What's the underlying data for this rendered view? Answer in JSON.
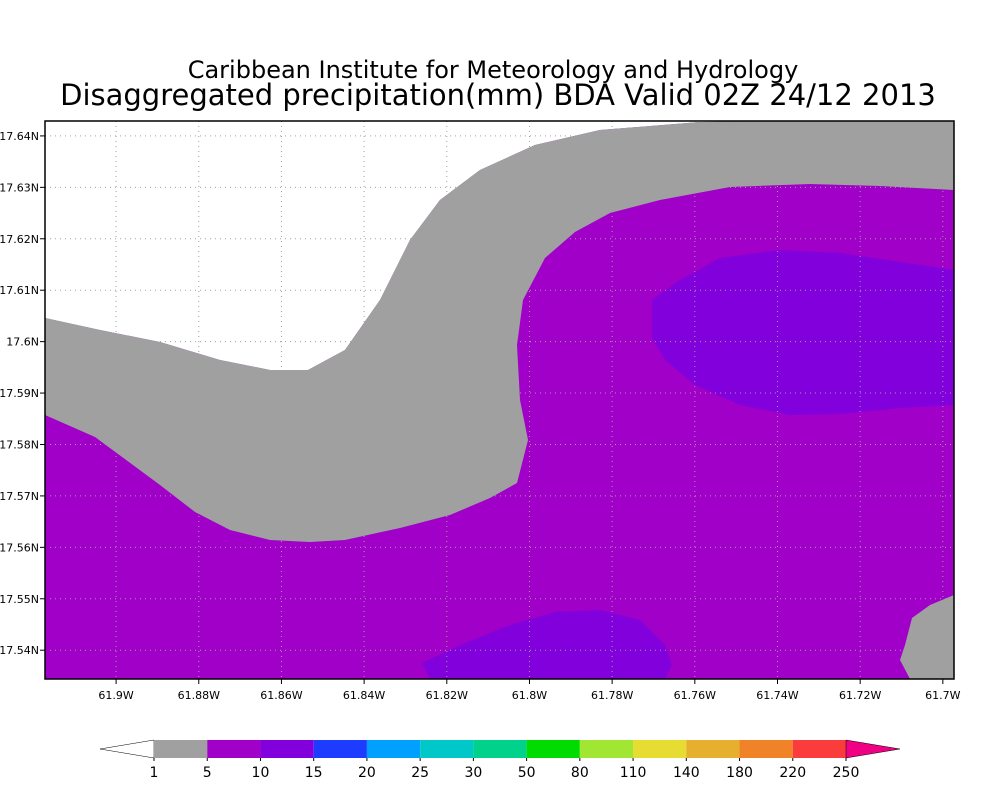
{
  "chart_data": {
    "type": "contour",
    "title": "Caribbean Institute for Meteorology and Hydrology",
    "subtitle": "Disaggregated precipitation(mm) BDA Valid 02Z 24/12 2013",
    "xlim": [
      -61.9172,
      -61.6973
    ],
    "ylim": [
      17.5344,
      17.6429
    ],
    "xticks": [
      {
        "value": -61.9,
        "label": "61.9W"
      },
      {
        "value": -61.88,
        "label": "61.88W"
      },
      {
        "value": -61.86,
        "label": "61.86W"
      },
      {
        "value": -61.84,
        "label": "61.84W"
      },
      {
        "value": -61.82,
        "label": "61.82W"
      },
      {
        "value": -61.8,
        "label": "61.8W"
      },
      {
        "value": -61.78,
        "label": "61.78W"
      },
      {
        "value": -61.76,
        "label": "61.76W"
      },
      {
        "value": -61.74,
        "label": "61.74W"
      },
      {
        "value": -61.72,
        "label": "61.72W"
      },
      {
        "value": -61.7,
        "label": "61.7W"
      }
    ],
    "yticks": [
      {
        "value": 17.54,
        "label": "17.54N"
      },
      {
        "value": 17.55,
        "label": "17.55N"
      },
      {
        "value": 17.56,
        "label": "17.56N"
      },
      {
        "value": 17.57,
        "label": "17.57N"
      },
      {
        "value": 17.58,
        "label": "17.58N"
      },
      {
        "value": 17.59,
        "label": "17.59N"
      },
      {
        "value": 17.6,
        "label": "17.6N"
      },
      {
        "value": 17.61,
        "label": "17.61N"
      },
      {
        "value": 17.62,
        "label": "17.62N"
      },
      {
        "value": 17.63,
        "label": "17.63N"
      },
      {
        "value": 17.64,
        "label": "17.64N"
      }
    ],
    "grid": true,
    "levels": [
      1,
      5,
      10,
      15,
      20,
      25,
      30,
      50,
      80,
      110,
      140,
      180,
      220,
      250
    ],
    "colors": [
      "#ffffff",
      "#a0a0a0",
      "#a000c8",
      "#8200dc",
      "#1e3cff",
      "#00a0ff",
      "#00c8c8",
      "#00d28c",
      "#00dc00",
      "#a0e632",
      "#e6dc32",
      "#e6af2d",
      "#f08228",
      "#fa3c3c",
      "#f00082"
    ]
  }
}
